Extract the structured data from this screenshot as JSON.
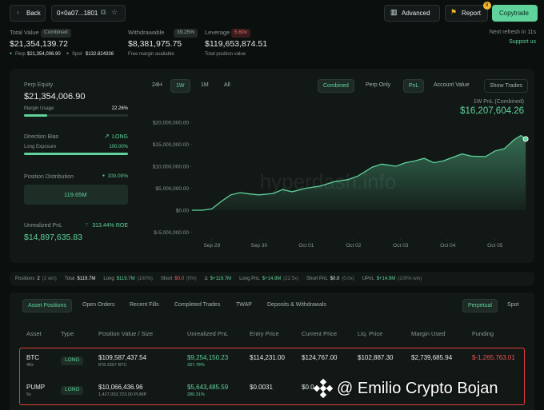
{
  "header": {
    "back": "Back",
    "address": "0×0a07...1801",
    "advanced": "Advanced",
    "report": "Report",
    "report_badge": "8",
    "copytrade": "Copytrade"
  },
  "summary": {
    "total_value": {
      "label": "Total Value",
      "tag": "Combined",
      "value": "$21,354,139.72",
      "perp_label": "Perp",
      "perp_value": "$21,354,006.90",
      "spot_label": "Spot",
      "spot_value": "$132.824336"
    },
    "withdrawable": {
      "label": "Withdrawable",
      "tag": "39.25%",
      "value": "$8,381,975.75",
      "note": "Free margin available"
    },
    "leverage": {
      "label": "Leverage",
      "tag": "5.60x",
      "value": "$119,653,874.51",
      "note": "Total position value"
    },
    "refresh": "Next refresh in 11s",
    "support": "Support us"
  },
  "left_panel": {
    "perp_equity_label": "Perp Equity",
    "perp_equity": "$21,354,006.90",
    "margin_usage_label": "Margin Usage",
    "margin_usage": "22.26%",
    "direction_bias_label": "Direction Bias",
    "direction_bias": "LONG",
    "long_exposure_label": "Long Exposure",
    "long_exposure": "100.00%",
    "distribution_label": "Position Distribution",
    "distribution_pct": "100.00%",
    "distribution_value": "119.65M",
    "upnl_label": "Unrealized PnL",
    "roe": "313.44% ROE",
    "upnl": "$14,897,635.83"
  },
  "chart_controls": {
    "ranges": [
      "24H",
      "1W",
      "1M",
      "All"
    ],
    "scope": [
      "Combined",
      "Perp Only"
    ],
    "metric": [
      "PnL",
      "Account Value"
    ],
    "show_trades": "Show Trades"
  },
  "chart_data": {
    "type": "area",
    "title": "1W PnL (Combined)",
    "headline": "$16,207,604.26",
    "watermark": "hyperdash.info",
    "color": "#5fd39b",
    "x": [
      -0.42,
      -0.2,
      0.0,
      0.2,
      0.4,
      0.6,
      0.8,
      1.0,
      1.3,
      1.5,
      1.7,
      2.0,
      2.3,
      2.6,
      2.9,
      3.1,
      3.4,
      3.6,
      3.9,
      4.1,
      4.3,
      4.5,
      4.7,
      4.9,
      5.1,
      5.3,
      5.5,
      5.8,
      6.0,
      6.2,
      6.4,
      6.55,
      6.65
    ],
    "values": [
      0,
      0,
      300000,
      2000000,
      3500000,
      4000000,
      3700000,
      3500000,
      3800000,
      4700000,
      4200000,
      5000000,
      5500000,
      6500000,
      7000000,
      7800000,
      9800000,
      10500000,
      10000000,
      10800000,
      11200000,
      11800000,
      10800000,
      11200000,
      12000000,
      12800000,
      12300000,
      12200000,
      13500000,
      14000000,
      16000000,
      17000000,
      16200000
    ],
    "xlim": [
      -0.42,
      6.75
    ],
    "xticks": [
      {
        "value": 0,
        "label": "Sep 29"
      },
      {
        "value": 1,
        "label": "Sep 30"
      },
      {
        "value": 2,
        "label": "Oct 01"
      },
      {
        "value": 3,
        "label": "Oct 02"
      },
      {
        "value": 4,
        "label": "Oct 03"
      },
      {
        "value": 5,
        "label": "Oct 04"
      },
      {
        "value": 6,
        "label": "Oct 05"
      }
    ],
    "ylim": [
      -5000000,
      20000000
    ],
    "yticks": [
      {
        "value": 20000000,
        "label": "$20,000,000.00"
      },
      {
        "value": 15000000,
        "label": "$15,000,000.00"
      },
      {
        "value": 10000000,
        "label": "$10,000,000.00"
      },
      {
        "value": 5000000,
        "label": "$5,000,000.00"
      },
      {
        "value": 0,
        "label": "$0.00"
      },
      {
        "value": -5000000,
        "label": "$-5,000,000.00"
      }
    ]
  },
  "stats_bar": [
    {
      "label": "Positions",
      "value": "2",
      "note": "(2 win)"
    },
    {
      "label": "Total",
      "value": "$119.7M"
    },
    {
      "label": "Long",
      "value": "$119.7M",
      "note": "(100%)"
    },
    {
      "label": "Short",
      "value": "$0.0",
      "note": "(0%)"
    },
    {
      "label": "Δ",
      "value": "$+119.7M"
    },
    {
      "label": "Long PnL",
      "value": "$+14.9M",
      "note": "(22.5x)"
    },
    {
      "label": "Short PnL",
      "value": "$0.0",
      "note": "(0.0x)"
    },
    {
      "label": "UPnL",
      "value": "$+14.9M",
      "note": "(100% win)"
    }
  ],
  "tabs": [
    "Asset Positions",
    "Open Orders",
    "Recent Fills",
    "Completed Trades",
    "TWAP",
    "Deposits & Withdrawals"
  ],
  "market_tabs": [
    "Perpetual",
    "Spot"
  ],
  "table": {
    "headers": [
      "Asset",
      "Type",
      "Position Value / Size",
      "Unrealized PnL",
      "Entry Price",
      "Current Price",
      "Liq. Price",
      "Margin Used",
      "Funding"
    ],
    "rows": [
      {
        "asset": "BTC",
        "leverage": "40x",
        "type": "LONG",
        "position_value": "$109,587,437.54",
        "size": "878.3367 BTC",
        "pnl": "$9,254,150.23",
        "pnl_pct": "337.78%",
        "entry": "$114,231.00",
        "current": "$124,767.00",
        "liq": "$102,887.30",
        "margin": "$2,739,685.94",
        "funding": "$-1,265,763.01"
      },
      {
        "asset": "PUMP",
        "leverage": "5x",
        "type": "LONG",
        "position_value": "$10,066,436.96",
        "size": "1,427,053,723.00 PUMP",
        "pnl": "$5,643,485.59",
        "pnl_pct": "280.31%",
        "entry": "$0.0031",
        "current": "$0.0"
      }
    ]
  },
  "watermark": "@ Emilio Crypto Bojan"
}
